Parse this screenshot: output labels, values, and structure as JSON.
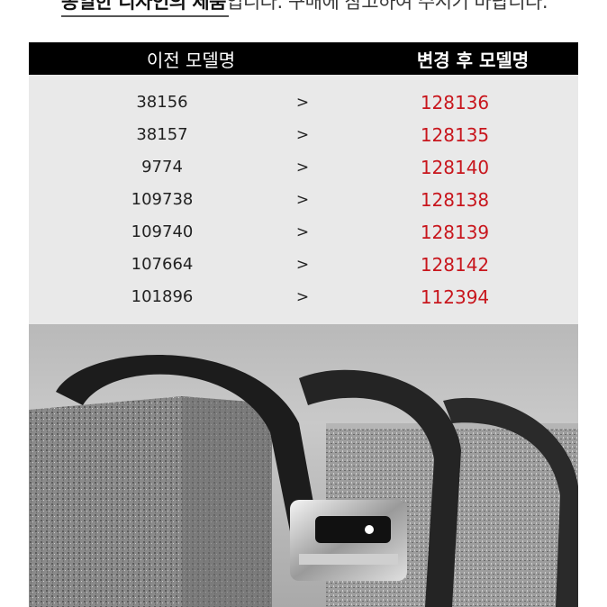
{
  "notice": {
    "bold": "동일한 디자인의 제품",
    "rest": "입니다. 구매에 참고하여 주시기 바랍니다."
  },
  "table": {
    "header_old": "이전 모델명",
    "header_new": "변경 후 모델명",
    "rows": [
      {
        "old": "38156",
        "sep": ">",
        "new": "128136"
      },
      {
        "old": "38157",
        "sep": ">",
        "new": "128135"
      },
      {
        "old": "9774",
        "sep": ">",
        "new": "128140"
      },
      {
        "old": "109738",
        "sep": ">",
        "new": "128138"
      },
      {
        "old": "109740",
        "sep": ">",
        "new": "128139"
      },
      {
        "old": "107664",
        "sep": ">",
        "new": "128142"
      },
      {
        "old": "101896",
        "sep": ">",
        "new": "112394"
      }
    ]
  },
  "colors": {
    "header_bg": "#000000",
    "table_bg": "#e9e9e9",
    "new_model_text": "#c8161d"
  }
}
